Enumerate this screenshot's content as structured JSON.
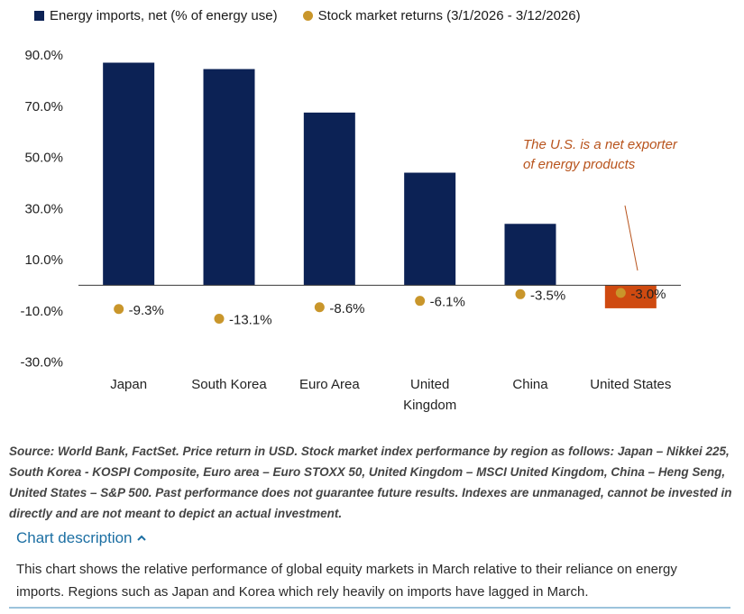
{
  "chart_data": {
    "type": "bar",
    "title": "",
    "xlabel": "",
    "ylabel": "",
    "ylim": [
      -35,
      95
    ],
    "yticks": [
      90,
      70,
      50,
      30,
      10,
      -10,
      -30
    ],
    "ytick_labels": [
      "90.0%",
      "70.0%",
      "50.0%",
      "30.0%",
      "10.0%",
      "-10.0%",
      "-30.0%"
    ],
    "categories": [
      {
        "lines": [
          "Japan"
        ]
      },
      {
        "lines": [
          "South Korea"
        ]
      },
      {
        "lines": [
          "Euro Area"
        ]
      },
      {
        "lines": [
          "United",
          "Kingdom"
        ]
      },
      {
        "lines": [
          "China"
        ]
      },
      {
        "lines": [
          "United States"
        ]
      }
    ],
    "series": [
      {
        "name": "Energy imports, net (% of energy use)",
        "kind": "bar",
        "values": [
          87,
          84.5,
          67.5,
          44,
          24,
          -9
        ]
      },
      {
        "name": "Stock market returns (3/1/2026 - 3/12/2026)",
        "kind": "point",
        "values": [
          -9.3,
          -13.1,
          -8.6,
          -6.1,
          -3.5,
          -3.0
        ]
      }
    ],
    "point_labels": [
      "-9.3%",
      "-13.1%",
      "-8.6%",
      "-6.1%",
      "-3.5%",
      "-3.0%"
    ],
    "annotation": {
      "lines": [
        "The U.S. is a net exporter",
        "of energy products"
      ]
    },
    "colors": {
      "bar": "#0c2255",
      "bar_highlight": "#cf4a10",
      "point": "#c9962b",
      "annotation": "#b8531c",
      "axis": "#3a3a3a"
    },
    "legend_position": "top-left"
  },
  "legend": {
    "bar_label": "Energy imports, net (% of energy use)",
    "point_label": "Stock market returns (3/1/2026 - 3/12/2026)"
  },
  "footer": {
    "source": "Source: World Bank, FactSet. Price return in USD. Stock market index performance by region as follows: Japan – Nikkei 225, South Korea - KOSPI Composite, Euro area – Euro STOXX 50, United Kingdom – MSCI United Kingdom, China – Heng Seng, United States – S&P 500. Past performance does not guarantee future results. Indexes are unmanaged, cannot be invested in directly and are not meant to depict an actual investment.",
    "description_toggle": "Chart description",
    "description": "This chart shows the relative performance of global equity markets in March relative to their reliance on energy imports. Regions such as Japan and Korea which rely heavily on imports have lagged in March."
  }
}
